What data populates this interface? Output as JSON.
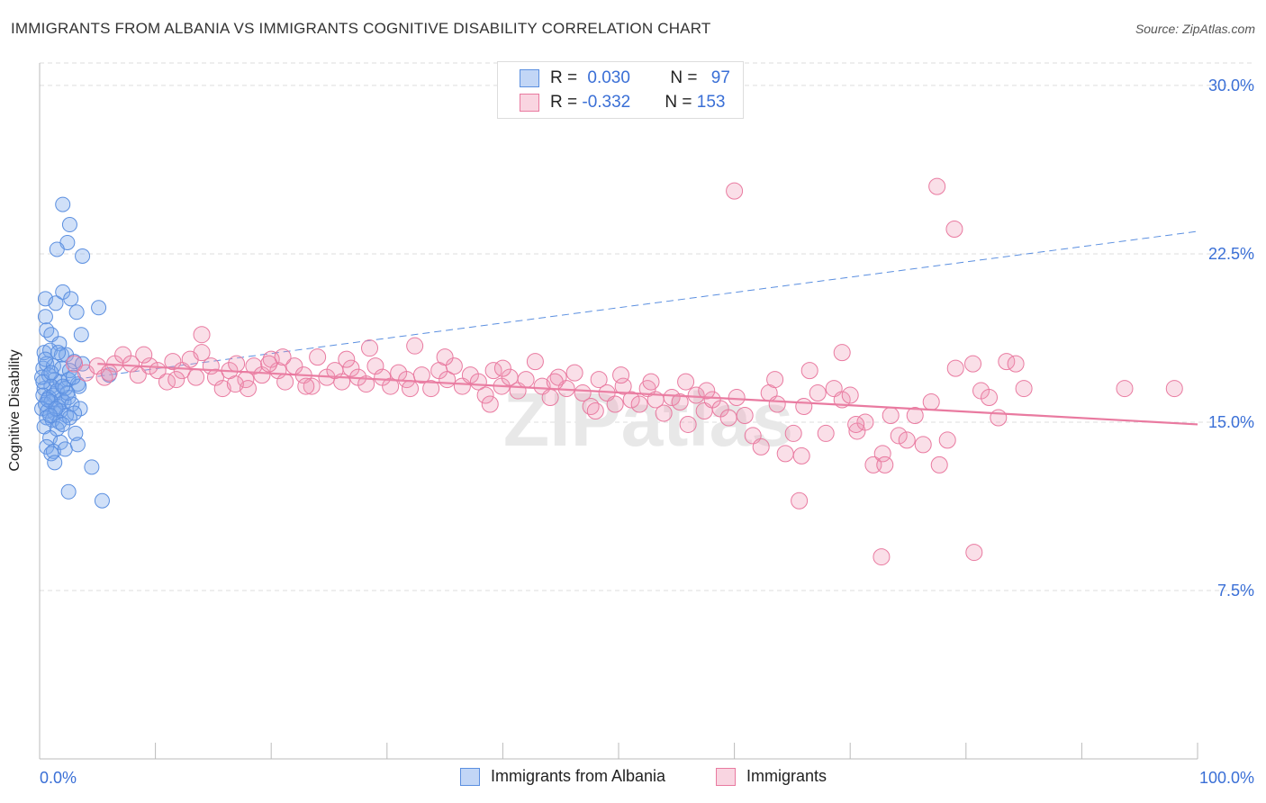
{
  "title": "IMMIGRANTS FROM ALBANIA VS IMMIGRANTS COGNITIVE DISABILITY CORRELATION CHART",
  "source": "Source: ZipAtlas.com",
  "watermark": "ZIPatlas",
  "colors": {
    "blue": "#5b8fe0",
    "blue_fill": "rgba(120,165,235,0.35)",
    "pink": "#e97aa0",
    "pink_fill": "rgba(240,150,180,0.30)",
    "tick_label": "#3a6fd6",
    "grid": "#dddddd"
  },
  "legend": {
    "row1": {
      "r_label": "R = ",
      "r_value": "0.030",
      "n_label": "N = ",
      "n_value": "97"
    },
    "row2": {
      "r_label": "R = ",
      "r_value": "-0.332",
      "n_label": "N = ",
      "n_value": "153"
    }
  },
  "bottom_legend": {
    "series1": "Immigrants from Albania",
    "series2": "Immigrants"
  },
  "chart_data": {
    "type": "scatter",
    "title": "IMMIGRANTS FROM ALBANIA VS IMMIGRANTS COGNITIVE DISABILITY CORRELATION CHART",
    "xlabel": "",
    "ylabel": "Cognitive Disability",
    "xlim": [
      0,
      100
    ],
    "ylim": [
      0,
      31
    ],
    "x_tick_labels": [
      "0.0%",
      "100.0%"
    ],
    "y_ticks": [
      7.5,
      15.0,
      22.5,
      30.0
    ],
    "y_tick_labels": [
      "7.5%",
      "15.0%",
      "22.5%",
      "30.0%"
    ],
    "grid": true,
    "legend_position": "top-center",
    "series": [
      {
        "name": "Immigrants from Albania",
        "color": "#5b8fe0",
        "r": 0.03,
        "n": 97,
        "trend": {
          "x": [
            0,
            100
          ],
          "y": [
            16.7,
            23.5
          ],
          "style": "dashed"
        },
        "points": [
          [
            2.0,
            24.7
          ],
          [
            2.6,
            23.8
          ],
          [
            2.4,
            23.0
          ],
          [
            1.5,
            22.7
          ],
          [
            3.7,
            22.4
          ],
          [
            0.5,
            20.5
          ],
          [
            1.4,
            20.3
          ],
          [
            2.0,
            20.8
          ],
          [
            2.7,
            20.5
          ],
          [
            3.2,
            19.9
          ],
          [
            5.1,
            20.1
          ],
          [
            0.5,
            19.7
          ],
          [
            0.6,
            19.1
          ],
          [
            1.0,
            18.9
          ],
          [
            3.6,
            18.9
          ],
          [
            1.7,
            18.5
          ],
          [
            0.4,
            18.1
          ],
          [
            0.9,
            18.2
          ],
          [
            1.9,
            18.0
          ],
          [
            2.3,
            18.0
          ],
          [
            3.0,
            17.7
          ],
          [
            0.3,
            17.4
          ],
          [
            0.6,
            17.6
          ],
          [
            1.2,
            17.5
          ],
          [
            1.9,
            17.4
          ],
          [
            2.6,
            17.3
          ],
          [
            3.7,
            17.6
          ],
          [
            6.0,
            17.1
          ],
          [
            0.2,
            17.0
          ],
          [
            0.8,
            17.1
          ],
          [
            1.3,
            16.9
          ],
          [
            1.8,
            16.8
          ],
          [
            2.5,
            16.9
          ],
          [
            3.3,
            16.7
          ],
          [
            0.4,
            16.5
          ],
          [
            1.0,
            16.6
          ],
          [
            1.5,
            16.4
          ],
          [
            2.2,
            16.5
          ],
          [
            3.4,
            16.6
          ],
          [
            0.3,
            16.2
          ],
          [
            0.8,
            16.1
          ],
          [
            1.2,
            16.2
          ],
          [
            1.9,
            16.0
          ],
          [
            2.5,
            16.1
          ],
          [
            0.5,
            15.8
          ],
          [
            1.0,
            15.9
          ],
          [
            1.6,
            15.7
          ],
          [
            2.1,
            15.9
          ],
          [
            2.8,
            15.8
          ],
          [
            3.5,
            15.6
          ],
          [
            0.2,
            15.6
          ],
          [
            0.7,
            15.5
          ],
          [
            1.3,
            15.4
          ],
          [
            1.8,
            15.5
          ],
          [
            2.3,
            15.3
          ],
          [
            3.0,
            15.4
          ],
          [
            0.6,
            15.2
          ],
          [
            1.1,
            15.1
          ],
          [
            1.7,
            15.0
          ],
          [
            2.6,
            15.2
          ],
          [
            0.4,
            14.8
          ],
          [
            1.5,
            14.7
          ],
          [
            2.0,
            14.9
          ],
          [
            0.9,
            14.3
          ],
          [
            1.8,
            14.1
          ],
          [
            3.1,
            14.5
          ],
          [
            0.6,
            13.9
          ],
          [
            1.2,
            13.7
          ],
          [
            2.2,
            13.8
          ],
          [
            3.3,
            14.0
          ],
          [
            1.0,
            13.6
          ],
          [
            1.3,
            13.2
          ],
          [
            4.5,
            13.0
          ],
          [
            2.5,
            11.9
          ],
          [
            5.4,
            11.5
          ],
          [
            0.3,
            16.8
          ],
          [
            1.0,
            17.2
          ],
          [
            2.9,
            17.0
          ],
          [
            0.7,
            16.0
          ],
          [
            1.4,
            15.6
          ],
          [
            2.4,
            16.3
          ],
          [
            0.5,
            17.8
          ],
          [
            1.6,
            18.1
          ],
          [
            0.9,
            15.3
          ],
          [
            2.0,
            16.6
          ]
        ]
      },
      {
        "name": "Immigrants",
        "color": "#e97aa0",
        "r": -0.332,
        "n": 153,
        "trend": {
          "x": [
            5,
            100
          ],
          "y": [
            17.6,
            14.9
          ],
          "style": "solid"
        },
        "points": [
          [
            3.0,
            17.6
          ],
          [
            4.0,
            17.2
          ],
          [
            5.0,
            17.5
          ],
          [
            5.6,
            17.0
          ],
          [
            6.5,
            17.6
          ],
          [
            7.2,
            18.0
          ],
          [
            7.9,
            17.6
          ],
          [
            8.5,
            17.1
          ],
          [
            9.5,
            17.5
          ],
          [
            10.2,
            17.3
          ],
          [
            11.0,
            16.8
          ],
          [
            11.5,
            17.7
          ],
          [
            12.3,
            17.3
          ],
          [
            13.0,
            17.8
          ],
          [
            13.5,
            17.0
          ],
          [
            14.0,
            18.1
          ],
          [
            14.8,
            17.5
          ],
          [
            15.2,
            17.0
          ],
          [
            15.8,
            16.5
          ],
          [
            16.4,
            17.3
          ],
          [
            17.0,
            17.6
          ],
          [
            17.8,
            16.9
          ],
          [
            18.5,
            17.5
          ],
          [
            19.2,
            17.1
          ],
          [
            20.0,
            17.8
          ],
          [
            20.6,
            17.3
          ],
          [
            21.2,
            16.8
          ],
          [
            22.0,
            17.5
          ],
          [
            22.8,
            17.1
          ],
          [
            23.5,
            16.6
          ],
          [
            24.0,
            17.9
          ],
          [
            24.8,
            17.0
          ],
          [
            25.5,
            17.3
          ],
          [
            26.1,
            16.8
          ],
          [
            26.9,
            17.4
          ],
          [
            27.5,
            17.0
          ],
          [
            28.2,
            16.7
          ],
          [
            29.0,
            17.5
          ],
          [
            29.6,
            17.0
          ],
          [
            30.3,
            16.6
          ],
          [
            31.0,
            17.2
          ],
          [
            31.7,
            16.9
          ],
          [
            32.4,
            18.4
          ],
          [
            33.0,
            17.1
          ],
          [
            33.8,
            16.5
          ],
          [
            34.5,
            17.3
          ],
          [
            35.2,
            16.9
          ],
          [
            35.8,
            17.5
          ],
          [
            36.5,
            16.6
          ],
          [
            37.2,
            17.1
          ],
          [
            37.9,
            16.8
          ],
          [
            38.5,
            16.2
          ],
          [
            39.2,
            17.3
          ],
          [
            39.9,
            16.6
          ],
          [
            40.6,
            17.0
          ],
          [
            41.3,
            16.4
          ],
          [
            42.0,
            16.9
          ],
          [
            42.8,
            17.7
          ],
          [
            43.4,
            16.6
          ],
          [
            44.1,
            16.1
          ],
          [
            44.8,
            17.0
          ],
          [
            45.5,
            16.5
          ],
          [
            46.2,
            17.2
          ],
          [
            46.9,
            16.3
          ],
          [
            47.6,
            15.7
          ],
          [
            48.3,
            16.9
          ],
          [
            49.0,
            16.3
          ],
          [
            49.7,
            15.8
          ],
          [
            50.4,
            16.6
          ],
          [
            51.1,
            16.0
          ],
          [
            51.8,
            15.8
          ],
          [
            52.5,
            16.5
          ],
          [
            53.2,
            16.0
          ],
          [
            53.9,
            15.4
          ],
          [
            54.6,
            16.1
          ],
          [
            55.3,
            15.9
          ],
          [
            56.0,
            14.9
          ],
          [
            56.7,
            16.2
          ],
          [
            57.4,
            15.5
          ],
          [
            58.1,
            16.0
          ],
          [
            58.8,
            15.6
          ],
          [
            59.5,
            15.2
          ],
          [
            60.2,
            16.1
          ],
          [
            60.9,
            15.3
          ],
          [
            61.6,
            14.4
          ],
          [
            62.3,
            13.9
          ],
          [
            63.0,
            16.3
          ],
          [
            63.7,
            15.8
          ],
          [
            64.4,
            13.6
          ],
          [
            65.1,
            14.5
          ],
          [
            65.8,
            13.5
          ],
          [
            66.5,
            17.3
          ],
          [
            67.2,
            16.3
          ],
          [
            67.9,
            14.5
          ],
          [
            68.6,
            16.5
          ],
          [
            69.3,
            16.0
          ],
          [
            70.0,
            16.2
          ],
          [
            70.6,
            14.6
          ],
          [
            71.3,
            15.0
          ],
          [
            72.0,
            13.1
          ],
          [
            72.8,
            13.6
          ],
          [
            73.5,
            15.3
          ],
          [
            74.2,
            14.4
          ],
          [
            74.9,
            14.2
          ],
          [
            75.6,
            15.3
          ],
          [
            76.3,
            14.0
          ],
          [
            77.0,
            15.9
          ],
          [
            77.7,
            13.1
          ],
          [
            78.4,
            14.2
          ],
          [
            79.1,
            17.4
          ],
          [
            80.6,
            17.6
          ],
          [
            81.3,
            16.4
          ],
          [
            82.0,
            16.1
          ],
          [
            82.8,
            15.2
          ],
          [
            83.5,
            17.7
          ],
          [
            84.3,
            17.6
          ],
          [
            85.0,
            16.5
          ],
          [
            93.7,
            16.5
          ],
          [
            98.0,
            16.5
          ],
          [
            60.0,
            25.3
          ],
          [
            77.5,
            25.5
          ],
          [
            79.0,
            23.6
          ],
          [
            65.6,
            11.5
          ],
          [
            69.3,
            18.1
          ],
          [
            72.7,
            9.0
          ],
          [
            80.7,
            9.2
          ],
          [
            14.0,
            18.9
          ],
          [
            28.5,
            18.3
          ],
          [
            21.0,
            17.9
          ],
          [
            26.5,
            17.8
          ],
          [
            35.0,
            17.9
          ],
          [
            40.0,
            17.4
          ],
          [
            50.2,
            17.1
          ],
          [
            55.8,
            16.8
          ],
          [
            44.5,
            16.8
          ],
          [
            38.9,
            15.8
          ],
          [
            32.0,
            16.5
          ],
          [
            23.0,
            16.6
          ],
          [
            18.0,
            16.5
          ],
          [
            48.0,
            15.5
          ],
          [
            52.8,
            16.8
          ],
          [
            57.6,
            16.4
          ],
          [
            63.5,
            16.9
          ],
          [
            66.0,
            15.7
          ],
          [
            70.5,
            14.9
          ],
          [
            73.0,
            13.1
          ],
          [
            9.0,
            18.0
          ],
          [
            6.0,
            17.2
          ],
          [
            11.8,
            16.9
          ],
          [
            16.9,
            16.7
          ],
          [
            19.8,
            17.6
          ]
        ]
      }
    ]
  }
}
